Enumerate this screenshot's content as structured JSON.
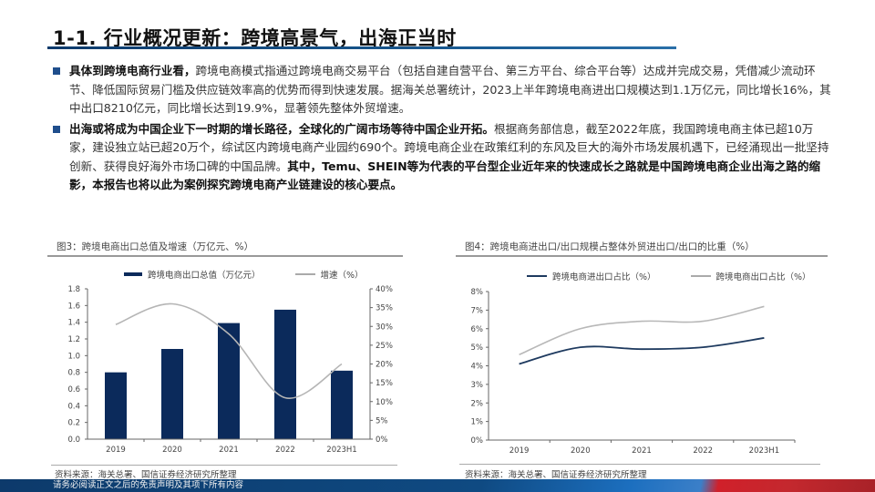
{
  "slide": {
    "title": "1-1. 行业概况更新：跨境高景气，出海正当时",
    "accent_color": "#0d3a6b"
  },
  "bullets": [
    {
      "bold": "具体到跨境电商行业看，",
      "text": "跨境电商模式指通过跨境电商交易平台（包括自建自营平台、第三方平台、综合平台等）达成并完成交易，凭借减少流动环节、降低国际贸易门槛及供应链效率高的优势而得到快速发展。据海关总署统计，2023上半年跨境电商进出口规模达到1.1万亿元，同比增长16%，其中出口8210亿元，同比增长达到19.9%，显著领先整体外贸增速。"
    },
    {
      "bold": "出海或将成为中国企业下一时期的增长路径，全球化的广阔市场等待中国企业开拓。",
      "text": "根据商务部信息，截至2022年底，我国跨境电商主体已超10万家，建设独立站已超20万个，综试区内跨境电商产业园约690个。跨境电商企业在政策红利的东风及巨大的海外市场发展机遇下，已经涌现出一批坚持创新、获得良好海外市场口碑的中国品牌。",
      "bold2": "其中，Temu、SHEIN等为代表的平台型企业近年来的快速成长之路就是中国跨境电商企业出海之路的缩影，本报告也将以此为案例探究跨境电商产业链建设的核心要点。"
    }
  ],
  "figures": [
    {
      "title": "图3：跨境电商出口总值及增速（万亿元、%）",
      "source": "资料来源：海关总署、国信证券经济研究所整理",
      "legend": [
        "跨境电商出口总值（万亿元）",
        "增速（%）"
      ],
      "y_left_ticks": [
        "1.8",
        "1.6",
        "1.4",
        "1.2",
        "1.0",
        "0.8",
        "0.6",
        "0.4",
        "0.2",
        "0.0"
      ],
      "y_right_ticks": [
        "40%",
        "35%",
        "30%",
        "25%",
        "20%",
        "15%",
        "10%",
        "5%",
        "0%"
      ],
      "x_ticks": [
        "2019",
        "2020",
        "2021",
        "2022",
        "2023H1"
      ]
    },
    {
      "title": "图4：跨境电商进出口/出口规模占整体外贸进出口/出口的比重（%）",
      "source": "资料来源：海关总署、国信证券经济研究所整理",
      "legend": [
        "跨境电商进出口占比（%）",
        "跨境电商出口占比（%）"
      ],
      "y_ticks": [
        "8%",
        "7%",
        "6%",
        "5%",
        "4%",
        "3%",
        "2%",
        "1%",
        "0%"
      ],
      "x_ticks": [
        "2019",
        "2020",
        "2021",
        "2022",
        "2023H1"
      ]
    }
  ],
  "chart_data": [
    {
      "type": "bar",
      "title": "图3：跨境电商出口总值及增速（万亿元、%）",
      "categories": [
        "2019",
        "2020",
        "2021",
        "2022",
        "2023H1"
      ],
      "series": [
        {
          "name": "跨境电商出口总值（万亿元）",
          "type": "bar",
          "axis": "left",
          "color": "#0b2a5b",
          "values": [
            0.8,
            1.08,
            1.39,
            1.55,
            0.82
          ]
        },
        {
          "name": "增速（%）",
          "type": "line",
          "axis": "right",
          "color": "#aaaaaa",
          "values": [
            30.5,
            36.0,
            28.0,
            11.0,
            20.0
          ]
        }
      ],
      "ylim_left": [
        0,
        1.8
      ],
      "ylim_right": [
        0,
        40
      ],
      "xlabel": "",
      "ylabel": "",
      "grid": false,
      "legend_position": "top"
    },
    {
      "type": "line",
      "title": "图4：跨境电商进出口/出口规模占整体外贸进出口/出口的比重（%）",
      "categories": [
        "2019",
        "2020",
        "2021",
        "2022",
        "2023H1"
      ],
      "series": [
        {
          "name": "跨境电商进出口占比（%）",
          "color": "#1e3a5f",
          "values": [
            4.1,
            5.0,
            4.9,
            5.0,
            5.5
          ]
        },
        {
          "name": "跨境电商出口占比（%）",
          "color": "#b0b0b0",
          "values": [
            4.6,
            6.0,
            6.4,
            6.4,
            7.2
          ]
        }
      ],
      "ylim": [
        0,
        8
      ],
      "xlabel": "",
      "ylabel": "",
      "grid": false,
      "legend_position": "top"
    }
  ],
  "footer": {
    "disclaimer": "请务必阅读正文之后的免责声明及其项下所有内容"
  }
}
